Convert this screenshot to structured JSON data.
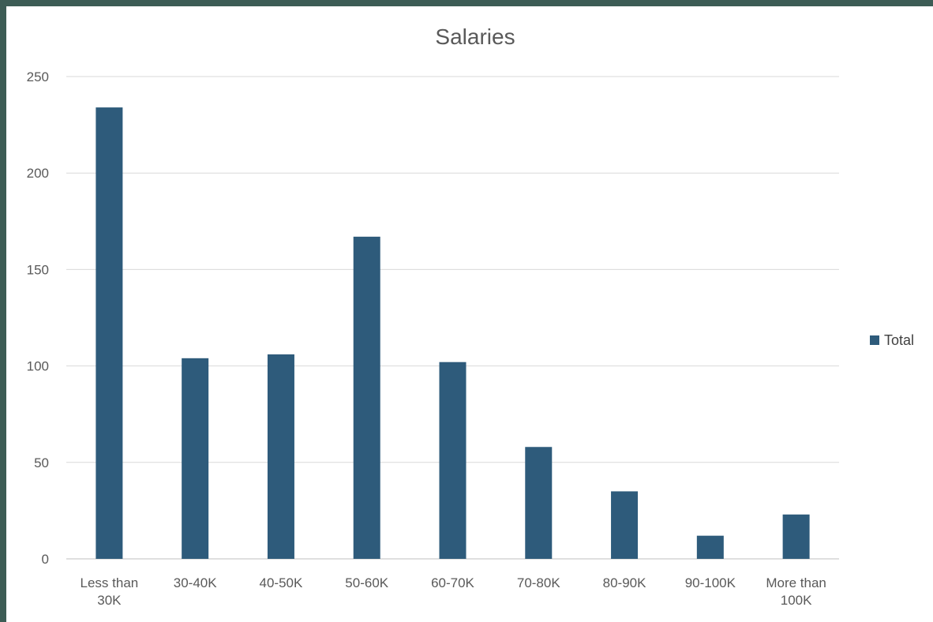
{
  "chart_data": {
    "type": "bar",
    "title": "Salaries",
    "xlabel": "",
    "ylabel": "",
    "categories": [
      "Less than 30K",
      "30-40K",
      "40-50K",
      "50-60K",
      "60-70K",
      "70-80K",
      "80-90K",
      "90-100K",
      "More than 100K"
    ],
    "category_lines": [
      [
        "Less than",
        "30K"
      ],
      [
        "30-40K"
      ],
      [
        "40-50K"
      ],
      [
        "50-60K"
      ],
      [
        "60-70K"
      ],
      [
        "70-80K"
      ],
      [
        "80-90K"
      ],
      [
        "90-100K"
      ],
      [
        "More than",
        "100K"
      ]
    ],
    "series": [
      {
        "name": "Total",
        "values": [
          234,
          104,
          106,
          167,
          102,
          58,
          35,
          12,
          23
        ],
        "color": "#2e5b7b"
      }
    ],
    "ylim": [
      0,
      250
    ],
    "yticks": [
      0,
      50,
      100,
      150,
      200,
      250
    ],
    "grid": true,
    "legend_position": "right"
  }
}
